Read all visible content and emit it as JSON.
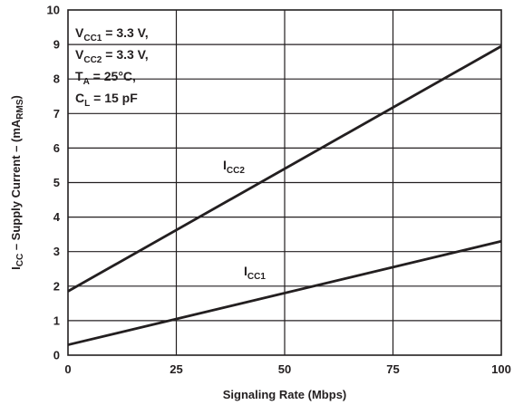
{
  "chart_data": {
    "type": "line",
    "xlabel": "Signaling Rate (Mbps)",
    "ylabel": {
      "prefix": "I",
      "prefix_sub": "CC",
      "middle": " – Supply Current – (mA",
      "middle_sub": "RMS",
      "suffix": ")"
    },
    "xlim": [
      0,
      100
    ],
    "ylim": [
      0,
      10
    ],
    "x_ticks": [
      0,
      25,
      50,
      75,
      100
    ],
    "y_ticks": [
      0,
      1,
      2,
      3,
      4,
      5,
      6,
      7,
      8,
      9,
      10
    ],
    "grid": true,
    "series": [
      {
        "label_main": "I",
        "label_sub": "CC2",
        "x": [
          0,
          100
        ],
        "y": [
          1.85,
          8.95
        ]
      },
      {
        "label_main": "I",
        "label_sub": "CC1",
        "x": [
          0,
          100
        ],
        "y": [
          0.3,
          3.3
        ]
      }
    ],
    "conditions": [
      {
        "main": "V",
        "sub": "CC1",
        "rest": " = 3.3 V,"
      },
      {
        "main": "V",
        "sub": "CC2",
        "rest": " = 3.3 V,"
      },
      {
        "main": "T",
        "sub": "A",
        "rest": " = 25°C,"
      },
      {
        "main": "C",
        "sub": "L",
        "rest": "  = 15 pF"
      }
    ],
    "colors": {
      "line": "#231f20",
      "grid": "#231f20",
      "background": "#ffffff"
    }
  }
}
